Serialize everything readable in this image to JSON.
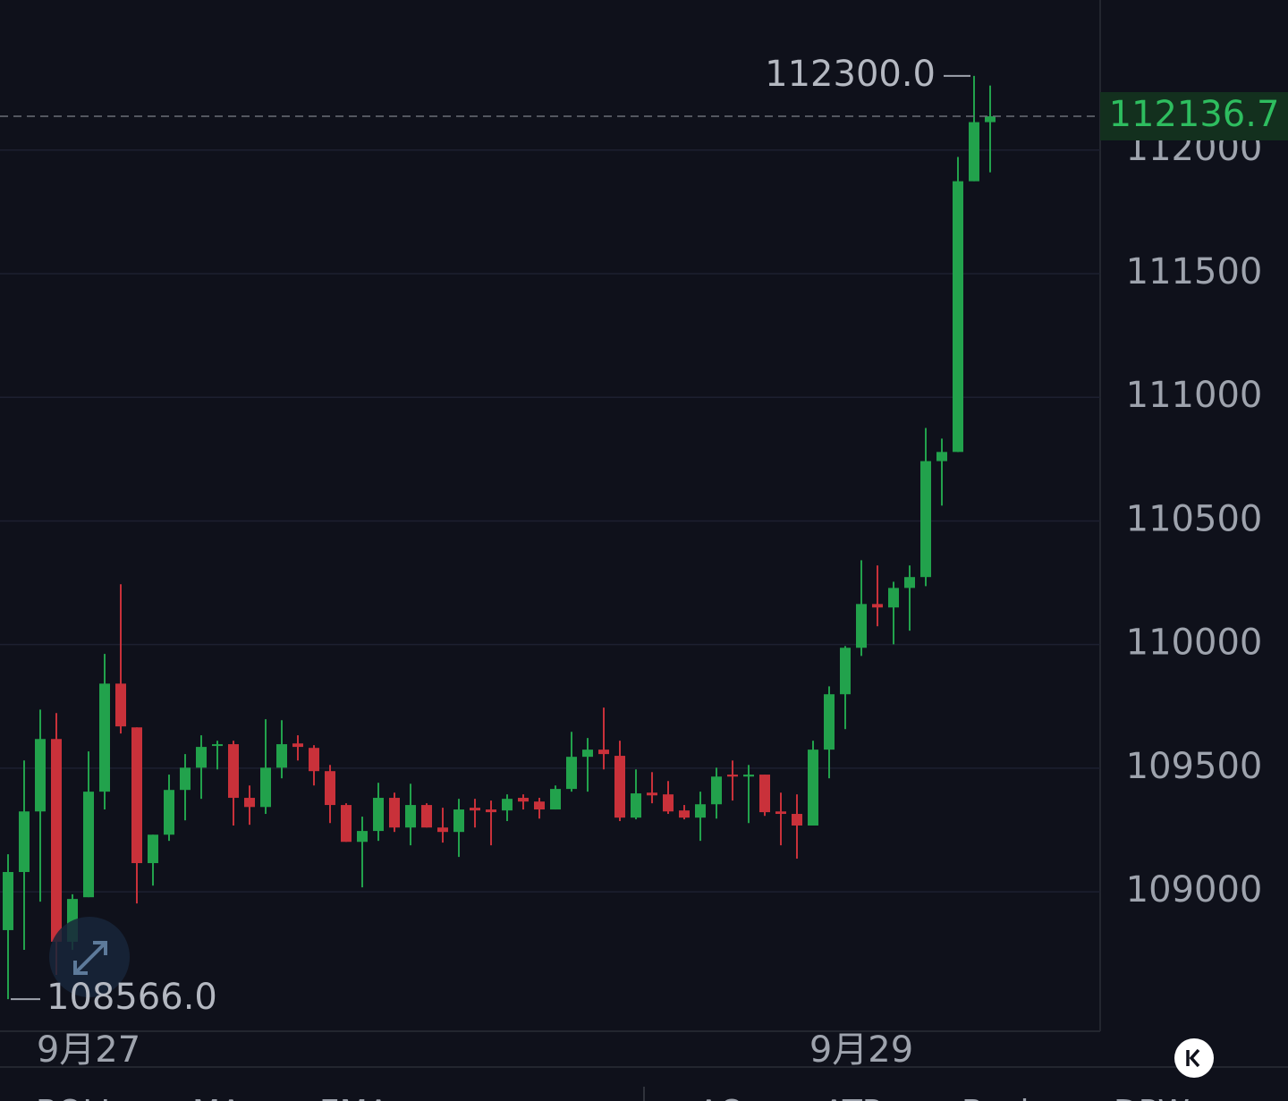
{
  "chart_data": {
    "type": "candlestick",
    "categories": [
      null,
      null,
      null,
      null,
      null,
      "9月27",
      null,
      null,
      null,
      null,
      null,
      null,
      null,
      null,
      null,
      null,
      null,
      null,
      null,
      null,
      null,
      null,
      null,
      null,
      null,
      null,
      null,
      null,
      null,
      null,
      null,
      null,
      null,
      null,
      null,
      null,
      null,
      null,
      null,
      null,
      null,
      null,
      null,
      null,
      null,
      null,
      null,
      null,
      null,
      null,
      null,
      null,
      null,
      "9月29",
      null,
      null,
      null,
      null,
      null,
      null,
      null,
      null
    ],
    "open": [
      108845,
      109080,
      109325,
      109618,
      108798,
      108978,
      109405,
      109842,
      109665,
      109116,
      109231,
      109412,
      109502,
      109590,
      109597,
      109380,
      109343,
      109502,
      109600,
      109582,
      109488,
      109351,
      109202,
      109246,
      109380,
      109260,
      109351,
      109260,
      109242,
      109340,
      109333,
      109329,
      109380,
      109365,
      109333,
      109416,
      109546,
      109575,
      109550,
      109300,
      109401,
      109394,
      109329,
      109300,
      109354,
      109474,
      109466,
      109474,
      109325,
      109315,
      109268,
      109575,
      109799,
      109987,
      110164,
      110150,
      110229,
      110273,
      110742,
      110779,
      111874,
      112113
    ],
    "high": [
      109152,
      109531,
      109737,
      109723,
      108990,
      109568,
      109962,
      110244,
      109665,
      109231,
      109474,
      109557,
      109633,
      109611,
      109611,
      109430,
      109698,
      109694,
      109633,
      109593,
      109513,
      109358,
      109304,
      109441,
      109401,
      109437,
      109358,
      109340,
      109376,
      109376,
      109369,
      109394,
      109394,
      109380,
      109430,
      109647,
      109622,
      109745,
      109611,
      109495,
      109484,
      109448,
      109351,
      109405,
      109502,
      109531,
      109513,
      109474,
      109401,
      109394,
      109611,
      109831,
      109994,
      110341,
      110320,
      110254,
      110320,
      110876,
      110833,
      111972,
      112300,
      112261
    ],
    "low": [
      108566,
      108765,
      108960,
      108664,
      108765,
      108978,
      109333,
      109640,
      108953,
      109025,
      109206,
      109289,
      109376,
      109495,
      109268,
      109271,
      109315,
      109459,
      109531,
      109430,
      109278,
      109202,
      109018,
      109206,
      109242,
      109188,
      109260,
      109199,
      109141,
      109260,
      109188,
      109286,
      109333,
      109296,
      109333,
      109405,
      109405,
      109495,
      109286,
      109293,
      109358,
      109315,
      109293,
      109206,
      109296,
      109369,
      109278,
      109307,
      109188,
      109134,
      109268,
      109459,
      109658,
      109954,
      110074,
      110001,
      110056,
      110236,
      110562,
      110779,
      111874,
      111910
    ],
    "close": [
      109080,
      109325,
      109618,
      108798,
      108971,
      109405,
      109842,
      109669,
      109116,
      109231,
      109412,
      109502,
      109586,
      109597,
      109380,
      109343,
      109502,
      109597,
      109586,
      109488,
      109351,
      109202,
      109246,
      109380,
      109260,
      109351,
      109260,
      109242,
      109333,
      109329,
      109322,
      109376,
      109365,
      109333,
      109416,
      109546,
      109575,
      109557,
      109300,
      109398,
      109390,
      109325,
      109300,
      109354,
      109466,
      109466,
      109474,
      109322,
      109315,
      109268,
      109575,
      109799,
      109987,
      110164,
      110150,
      110229,
      110273,
      110742,
      110779,
      111874,
      112113,
      112136.7
    ],
    "up_color": "#22a24c",
    "down_color": "#c9313a",
    "ylim": [
      108436,
      112607
    ],
    "yticks": [
      109000,
      109500,
      110000,
      110500,
      111000,
      111500,
      112000
    ],
    "grid": true,
    "last_price": 112136.7,
    "last_price_color": "#2ebd5f",
    "high_marker": {
      "value": 112300,
      "label": "112300.0"
    },
    "low_marker": {
      "value": 108566,
      "label": "108566.0"
    }
  },
  "tabs": [
    "BOLL",
    "MA",
    "EMA",
    "AO",
    "ATR",
    "Basic",
    "DPW"
  ]
}
